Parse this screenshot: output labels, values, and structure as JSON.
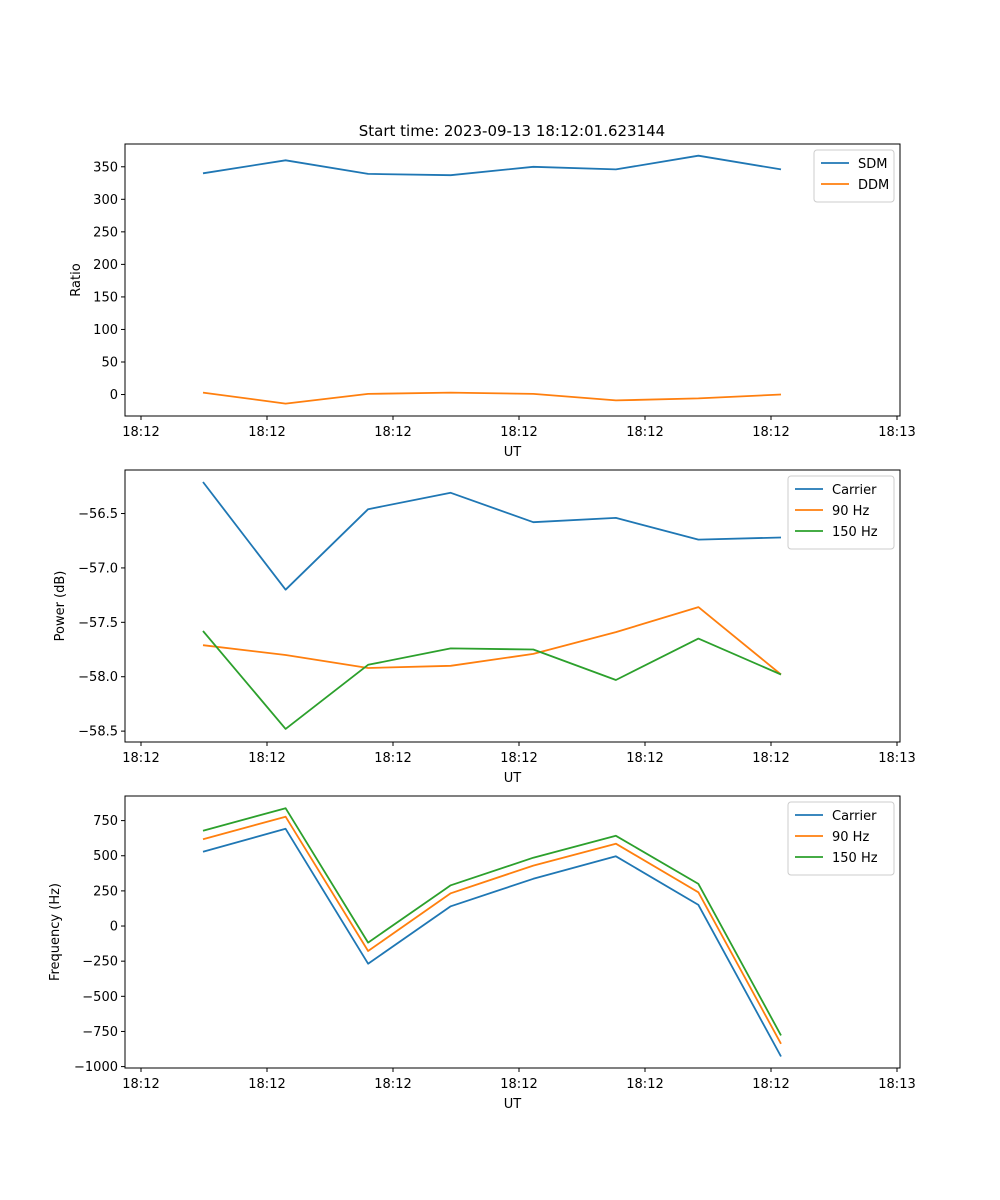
{
  "figure_title": "Start time: 2023-09-13 18:12:01.623144",
  "chart_data": [
    {
      "type": "line",
      "title": "Start time: 2023-09-13 18:12:01.623144",
      "xlabel": "UT",
      "ylabel": "Ratio",
      "x_ticks": [
        "18:12",
        "18:12",
        "18:12",
        "18:12",
        "18:12",
        "18:12",
        "18:13"
      ],
      "y_ticks": [
        0,
        50,
        100,
        150,
        200,
        250,
        300,
        350
      ],
      "ylim": [
        -33,
        385
      ],
      "xlim": [
        0,
        100
      ],
      "x": [
        10.5,
        23.5,
        36.5,
        49.5,
        62.5,
        75.5,
        88.5,
        101.5
      ],
      "series": [
        {
          "name": "SDM",
          "color": "#1f77b4",
          "values": [
            340,
            360,
            339,
            337,
            350,
            346,
            367,
            346
          ]
        },
        {
          "name": "DDM",
          "color": "#ff7f0e",
          "values": [
            3,
            -14,
            1,
            3,
            1,
            -9,
            -6,
            0
          ]
        }
      ],
      "legend": "top-right"
    },
    {
      "type": "line",
      "xlabel": "UT",
      "ylabel": "Power (dB)",
      "x_ticks": [
        "18:12",
        "18:12",
        "18:12",
        "18:12",
        "18:12",
        "18:12",
        "18:13"
      ],
      "y_ticks": [
        -58.5,
        -58.0,
        -57.5,
        -57.0,
        -56.5
      ],
      "y_tick_labels": [
        "−58.5",
        "−58.0",
        "−57.5",
        "−57.0",
        "−56.5"
      ],
      "ylim": [
        -58.6,
        -56.1
      ],
      "xlim": [
        0,
        100
      ],
      "x": [
        10.5,
        23.5,
        36.5,
        49.5,
        62.5,
        75.5,
        88.5,
        101.5
      ],
      "series": [
        {
          "name": "Carrier",
          "color": "#1f77b4",
          "values": [
            -56.21,
            -57.2,
            -56.46,
            -56.31,
            -56.58,
            -56.54,
            -56.74,
            -56.72
          ]
        },
        {
          "name": "90 Hz",
          "color": "#ff7f0e",
          "values": [
            -57.71,
            -57.8,
            -57.92,
            -57.9,
            -57.79,
            -57.59,
            -57.36,
            -57.98
          ]
        },
        {
          "name": "150 Hz",
          "color": "#2ca02c",
          "values": [
            -57.58,
            -58.48,
            -57.89,
            -57.74,
            -57.75,
            -58.03,
            -57.65,
            -57.98
          ]
        }
      ],
      "legend": "top-right"
    },
    {
      "type": "line",
      "xlabel": "UT",
      "ylabel": "Frequency (Hz)",
      "x_ticks": [
        "18:12",
        "18:12",
        "18:12",
        "18:12",
        "18:12",
        "18:12",
        "18:13"
      ],
      "y_ticks": [
        -1000,
        -750,
        -500,
        -250,
        0,
        250,
        500,
        750
      ],
      "y_tick_labels": [
        "−1000",
        "−750",
        "−500",
        "−250",
        "0",
        "250",
        "500",
        "750"
      ],
      "ylim": [
        -1010,
        925
      ],
      "xlim": [
        0,
        100
      ],
      "x": [
        10.5,
        23.5,
        36.5,
        49.5,
        62.5,
        75.5,
        88.5,
        101.5
      ],
      "series": [
        {
          "name": "Carrier",
          "color": "#1f77b4",
          "values": [
            528,
            692,
            -268,
            140,
            336,
            496,
            150,
            -928
          ]
        },
        {
          "name": "90 Hz",
          "color": "#ff7f0e",
          "values": [
            618,
            778,
            -178,
            233,
            430,
            586,
            240,
            -838
          ]
        },
        {
          "name": "150 Hz",
          "color": "#2ca02c",
          "values": [
            678,
            838,
            -118,
            290,
            486,
            642,
            300,
            -778
          ]
        }
      ],
      "legend": "top-right"
    }
  ]
}
